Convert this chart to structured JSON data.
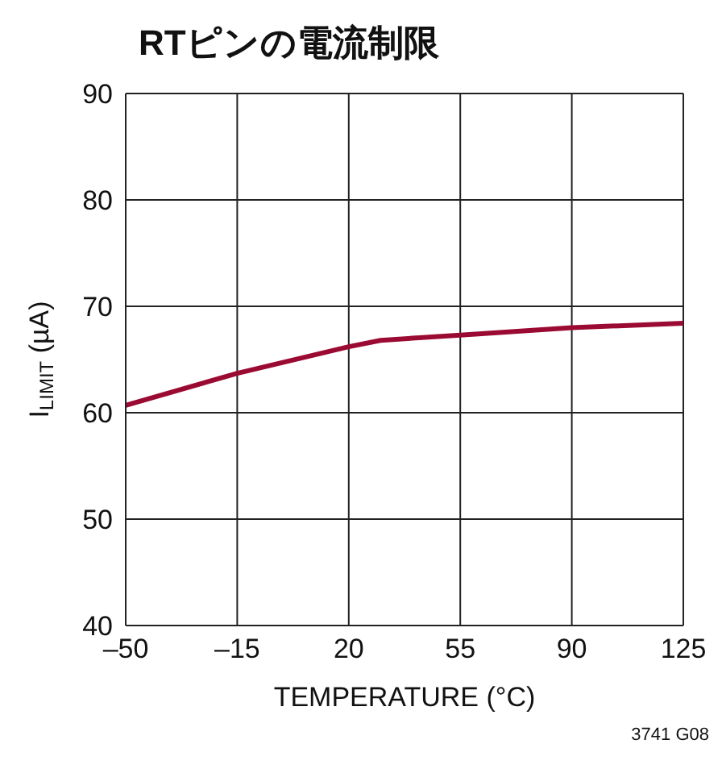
{
  "chart_data": {
    "type": "line",
    "title": "RTピンの電流制限",
    "xlabel": "TEMPERATURE (°C)",
    "ylabel": "I$_{LIMIT}$ (µA)",
    "annotations": [
      "3741 G08"
    ],
    "series": [
      {
        "color": "#9b0a32",
        "x": [
          -50,
          -15,
          20,
          30,
          55,
          90,
          125
        ],
        "values": [
          60.7,
          63.7,
          66.2,
          66.8,
          67.3,
          68.0,
          68.4
        ]
      }
    ],
    "xlim": [
      -50,
      125
    ],
    "xticks": [
      {
        "value": -50,
        "label": "–50"
      },
      {
        "value": -15,
        "label": "–15"
      },
      20,
      55,
      90,
      125
    ],
    "ylim": [
      40,
      90
    ],
    "yticks": [
      40,
      50,
      60,
      70,
      80,
      90
    ],
    "grid": true,
    "legend": false,
    "marker": "none",
    "line_style": "solid"
  }
}
